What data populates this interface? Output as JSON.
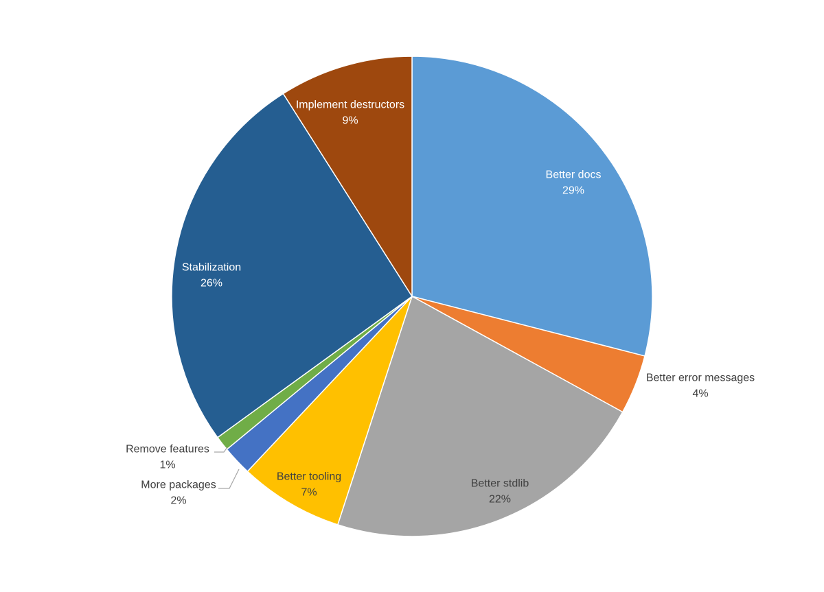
{
  "chart_data": {
    "type": "pie",
    "title": "",
    "start_angle_deg": 0,
    "direction": "clockwise",
    "slices": [
      {
        "label": "Better docs",
        "percent_label": "29%",
        "value": 29,
        "color": "#5b9bd5",
        "label_color": "#ffffff",
        "label_placement": "inside"
      },
      {
        "label": "Better error messages",
        "percent_label": "4%",
        "value": 4,
        "color": "#ed7d31",
        "label_color": "#404040",
        "label_placement": "outside"
      },
      {
        "label": "Better stdlib",
        "percent_label": "22%",
        "value": 22,
        "color": "#a5a5a5",
        "label_color": "#404040",
        "label_placement": "inside"
      },
      {
        "label": "Better tooling",
        "percent_label": "7%",
        "value": 7,
        "color": "#ffc000",
        "label_color": "#404040",
        "label_placement": "inside"
      },
      {
        "label": "More packages",
        "percent_label": "2%",
        "value": 2,
        "color": "#4472c4",
        "label_color": "#404040",
        "label_placement": "outside-leader"
      },
      {
        "label": "Remove features",
        "percent_label": "1%",
        "value": 1,
        "color": "#70ad47",
        "label_color": "#404040",
        "label_placement": "outside-leader"
      },
      {
        "label": "Stabilization",
        "percent_label": "26%",
        "value": 26,
        "color": "#255e91",
        "label_color": "#ffffff",
        "label_placement": "inside"
      },
      {
        "label": "Implement destructors",
        "percent_label": "9%",
        "value": 9,
        "color": "#9e480e",
        "label_color": "#ffffff",
        "label_placement": "inside"
      }
    ]
  }
}
